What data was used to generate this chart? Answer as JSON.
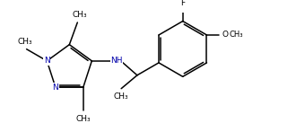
{
  "bg_color": "#ffffff",
  "bond_color": "#000000",
  "N_color": "#0000aa",
  "lw": 1.1,
  "fs": 6.5,
  "fig_width": 3.4,
  "fig_height": 1.47,
  "dpi": 100,
  "xlim": [
    -0.5,
    9.5
  ],
  "ylim": [
    -0.3,
    4.0
  ]
}
